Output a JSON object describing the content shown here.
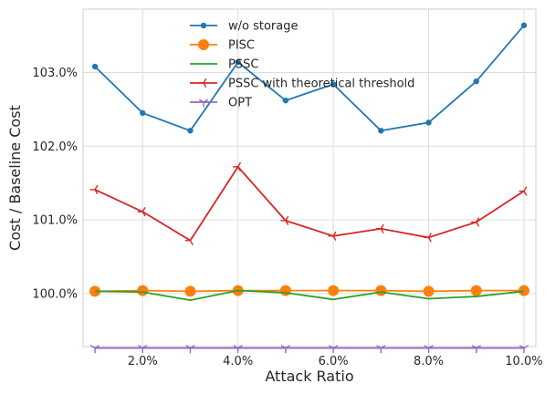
{
  "chart_data": {
    "type": "line",
    "title": "",
    "xlabel": "Attack Ratio",
    "ylabel": "Cost / Baseline Cost",
    "x": [
      1,
      2,
      3,
      4,
      5,
      6,
      7,
      8,
      9,
      10
    ],
    "xlim": [
      0.75,
      10.25
    ],
    "ylim": [
      99.28,
      103.86
    ],
    "xticks": [
      2,
      4,
      6,
      8,
      10
    ],
    "xtick_labels": [
      "2.0%",
      "4.0%",
      "6.0%",
      "8.0%",
      "10.0%"
    ],
    "yticks": [
      100,
      101,
      102,
      103
    ],
    "ytick_labels": [
      "100.0%",
      "101.0%",
      "102.0%",
      "103.0%"
    ],
    "grid": true,
    "legend_position": "top-center",
    "series": [
      {
        "name": "w/o storage",
        "color": "#1f77b4",
        "marker": "circle-small",
        "values": [
          103.08,
          102.45,
          102.21,
          103.14,
          102.62,
          102.84,
          102.21,
          102.32,
          102.88,
          103.64
        ]
      },
      {
        "name": "PISC",
        "color": "#ff7f0e",
        "marker": "circle-large",
        "values": [
          100.03,
          100.04,
          100.03,
          100.04,
          100.04,
          100.04,
          100.04,
          100.03,
          100.04,
          100.04
        ]
      },
      {
        "name": "PSSC",
        "color": "#2ca02c",
        "marker": "none",
        "values": [
          100.03,
          100.02,
          99.91,
          100.04,
          100.01,
          99.92,
          100.02,
          99.93,
          99.96,
          100.03
        ]
      },
      {
        "name": "PSSC with theoretical threshold",
        "color": "#d62728",
        "marker": "tri-left",
        "values": [
          101.41,
          101.11,
          100.72,
          101.72,
          100.99,
          100.78,
          100.88,
          100.76,
          100.97,
          101.39
        ]
      },
      {
        "name": "OPT",
        "color": "#9467bd",
        "marker": "tri-down",
        "values": [
          99.26,
          99.26,
          99.26,
          99.26,
          99.26,
          99.26,
          99.26,
          99.26,
          99.26,
          99.26
        ]
      }
    ]
  }
}
